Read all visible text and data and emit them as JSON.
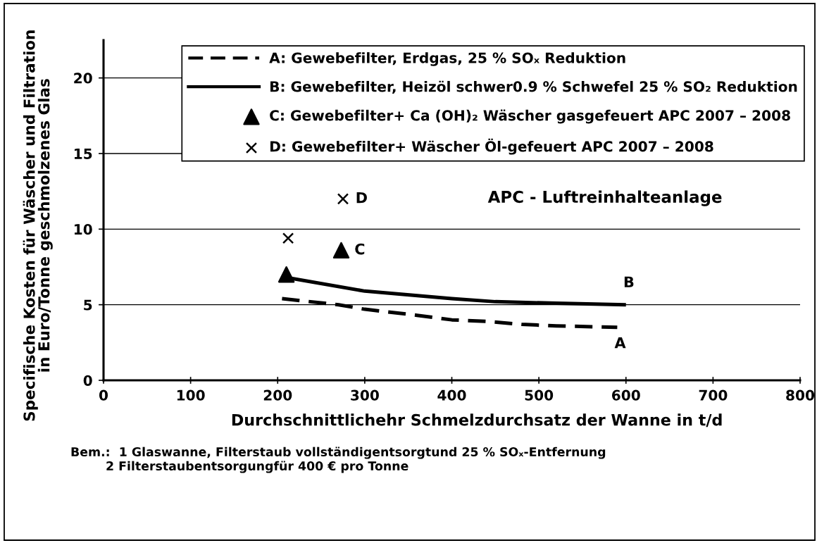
{
  "chart_data": {
    "type": "line",
    "xlabel": "Durchschnittlichehr Schmelzdurchsatz der Wanne in t/d",
    "ylabel": "Specifische Kosten für Wäscher und Filtration\nin Euro/Tonne geschmolzenes Glas",
    "xlim": [
      0,
      800
    ],
    "xticks": [
      0,
      100,
      200,
      300,
      400,
      500,
      600,
      700,
      800
    ],
    "ylim": [
      0,
      22.5
    ],
    "yticks": [
      0,
      5,
      10,
      15,
      20
    ],
    "grid": "y",
    "legend": "top right",
    "series": [
      {
        "name": "A: Gewebefilter, Erdgas, 25 % SOₓ Reduktion",
        "line_style": "dashed",
        "color": "#000000",
        "x": [
          205,
          270,
          300,
          360,
          400,
          440,
          480,
          520,
          590
        ],
        "values": [
          5.4,
          5.0,
          4.7,
          4.3,
          4.0,
          3.9,
          3.7,
          3.6,
          3.5
        ]
      },
      {
        "name": "B: Gewebefilter, Heizöl schwer0.9 % Schwefel 25 % SO₂ Reduktion",
        "line_style": "solid",
        "color": "#000000",
        "x": [
          210,
          300,
          400,
          450,
          520,
          600
        ],
        "values": [
          6.8,
          5.9,
          5.4,
          5.2,
          5.1,
          5.0
        ]
      },
      {
        "name": "C: Gewebefilter+ Ca (OH)₂ Wäscher gasgefeuert APC 2007 – 2008",
        "type": "scatter",
        "marker": "triangle",
        "color": "#000000",
        "x": [
          210,
          273
        ],
        "values": [
          7.0,
          8.6
        ]
      },
      {
        "name": "D: Gewebefilter+ Wäscher Öl-gefeuert APC 2007 – 2008",
        "type": "scatter",
        "marker": "cross",
        "color": "#000000",
        "x": [
          212,
          275
        ],
        "values": [
          9.4,
          12.0
        ]
      }
    ],
    "annotations": [
      "APC - Luftreinhalteanlage",
      {
        "text": "A",
        "x": 590,
        "y": 3.5
      },
      {
        "text": "B",
        "x": 600,
        "y": 5.0
      },
      {
        "text": "C",
        "x": 273,
        "y": 8.6
      },
      {
        "text": "D",
        "x": 275,
        "y": 12.0
      },
      "Bem.:  1 Glaswanne, Filterstaub vollständigentsorgtund 25 % SOₓ-Entfernung",
      "2 Filterstaubentsorgungfür 400 € pro Tonne"
    ]
  }
}
